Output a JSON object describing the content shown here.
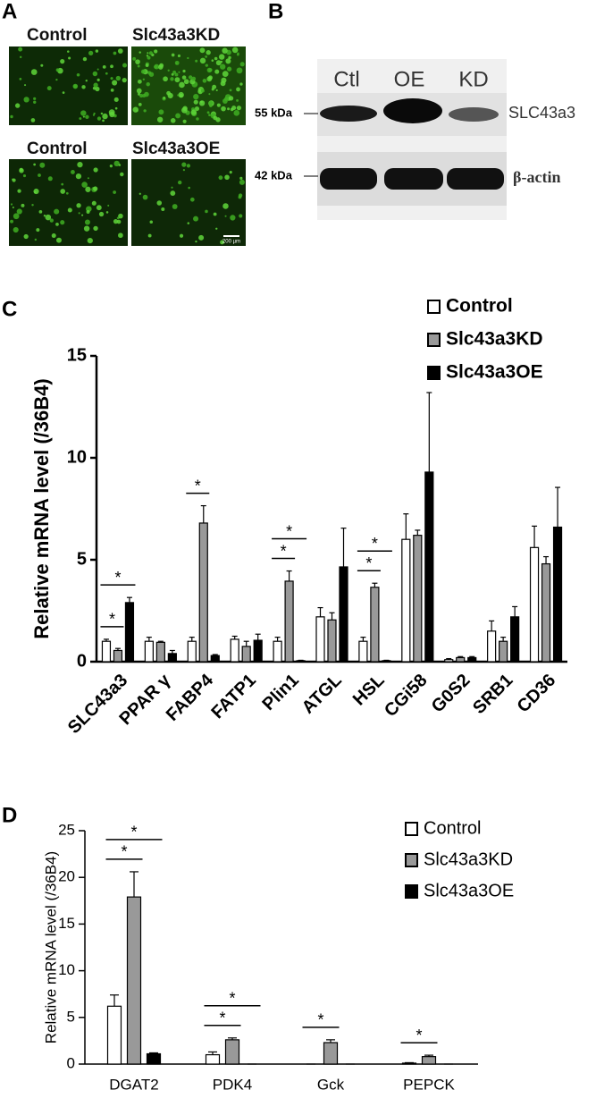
{
  "panel_labels": [
    "A",
    "B",
    "C",
    "D"
  ],
  "micrographs": {
    "labels": [
      "Control",
      "Slc43a3KD",
      "Control",
      "Slc43a3OE"
    ],
    "scale_bar": "200 µm"
  },
  "western_blot": {
    "lanes": [
      "Ctl",
      "OE",
      "KD"
    ],
    "markers": [
      "55 kDa",
      "42 kDa"
    ],
    "bands": [
      "SLC43a3",
      "β-actin"
    ]
  },
  "chart_data": [
    {
      "type": "bar",
      "y_label": "Relative mRNA level (/36B4)",
      "categories": [
        "SLC43a3",
        "PPAR γ",
        "FABP4",
        "FATP1",
        "Plin1",
        "ATGL",
        "HSL",
        "CGi58",
        "G0S2",
        "SRB1",
        "CD36"
      ],
      "series": [
        {
          "name": "Control",
          "color": "#ffffff",
          "values": [
            1.0,
            1.0,
            1.0,
            1.1,
            1.0,
            2.2,
            1.0,
            6.0,
            0.1,
            1.5,
            5.6
          ],
          "errors": [
            0.1,
            0.2,
            0.2,
            0.15,
            0.2,
            0.45,
            0.2,
            1.25,
            0.05,
            0.5,
            1.05
          ]
        },
        {
          "name": "Slc43a3KD",
          "color": "#999999",
          "values": [
            0.55,
            0.95,
            6.8,
            0.75,
            3.95,
            2.05,
            3.65,
            6.2,
            0.2,
            1.0,
            4.8
          ],
          "errors": [
            0.1,
            0.05,
            0.85,
            0.25,
            0.5,
            0.35,
            0.2,
            0.25,
            0.05,
            0.2,
            0.35
          ]
        },
        {
          "name": "Slc43a3OE",
          "color": "#000000",
          "values": [
            2.9,
            0.4,
            0.3,
            1.05,
            0.05,
            4.65,
            0.05,
            9.3,
            0.2,
            2.2,
            6.6
          ],
          "errors": [
            0.25,
            0.15,
            0.05,
            0.3,
            0.02,
            1.9,
            0.02,
            3.9,
            0.05,
            0.5,
            1.95
          ]
        }
      ],
      "ylim": [
        0,
        15
      ],
      "yticks": [
        0,
        5,
        10,
        15
      ],
      "legend": "upper right",
      "annotations": [
        {
          "text": "*",
          "category": 0,
          "series": [
            0,
            1
          ]
        },
        {
          "text": "*",
          "category": 0,
          "series": [
            0,
            2
          ]
        },
        {
          "text": "*",
          "category": 2,
          "series": [
            0,
            1
          ]
        },
        {
          "text": "*",
          "category": 4,
          "series": [
            0,
            1
          ]
        },
        {
          "text": "*",
          "category": 4,
          "series": [
            0,
            2
          ]
        },
        {
          "text": "*",
          "category": 6,
          "series": [
            0,
            1
          ]
        },
        {
          "text": "*",
          "category": 6,
          "series": [
            0,
            2
          ]
        }
      ]
    },
    {
      "type": "bar",
      "y_label": "Relative mRNA level (/36B4)",
      "categories": [
        "DGAT2",
        "PDK4",
        "Gck",
        "PEPCK"
      ],
      "series": [
        {
          "name": "Control",
          "color": "#ffffff",
          "values": [
            6.2,
            1.0,
            0,
            0.1
          ],
          "errors": [
            1.2,
            0.3,
            0,
            0.05
          ]
        },
        {
          "name": "Slc43a3KD",
          "color": "#999999",
          "values": [
            17.9,
            2.6,
            2.3,
            0.8
          ],
          "errors": [
            2.7,
            0.2,
            0.3,
            0.15
          ]
        },
        {
          "name": "Slc43a3OE",
          "color": "#000000",
          "values": [
            1.1,
            0,
            0,
            0
          ],
          "errors": [
            0.1,
            0,
            0,
            0
          ]
        }
      ],
      "ylim": [
        0,
        25
      ],
      "yticks": [
        0,
        5,
        10,
        15,
        20,
        25
      ],
      "legend": "upper right",
      "annotations": [
        {
          "text": "*",
          "category": 0,
          "series": [
            0,
            1
          ]
        },
        {
          "text": "*",
          "category": 0,
          "series": [
            0,
            2
          ]
        },
        {
          "text": "*",
          "category": 1,
          "series": [
            0,
            1
          ]
        },
        {
          "text": "*",
          "category": 1,
          "series": [
            0,
            2
          ]
        },
        {
          "text": "*",
          "category": 2,
          "series": [
            0,
            1
          ]
        },
        {
          "text": "*",
          "category": 3,
          "series": [
            0,
            1
          ]
        }
      ]
    }
  ]
}
